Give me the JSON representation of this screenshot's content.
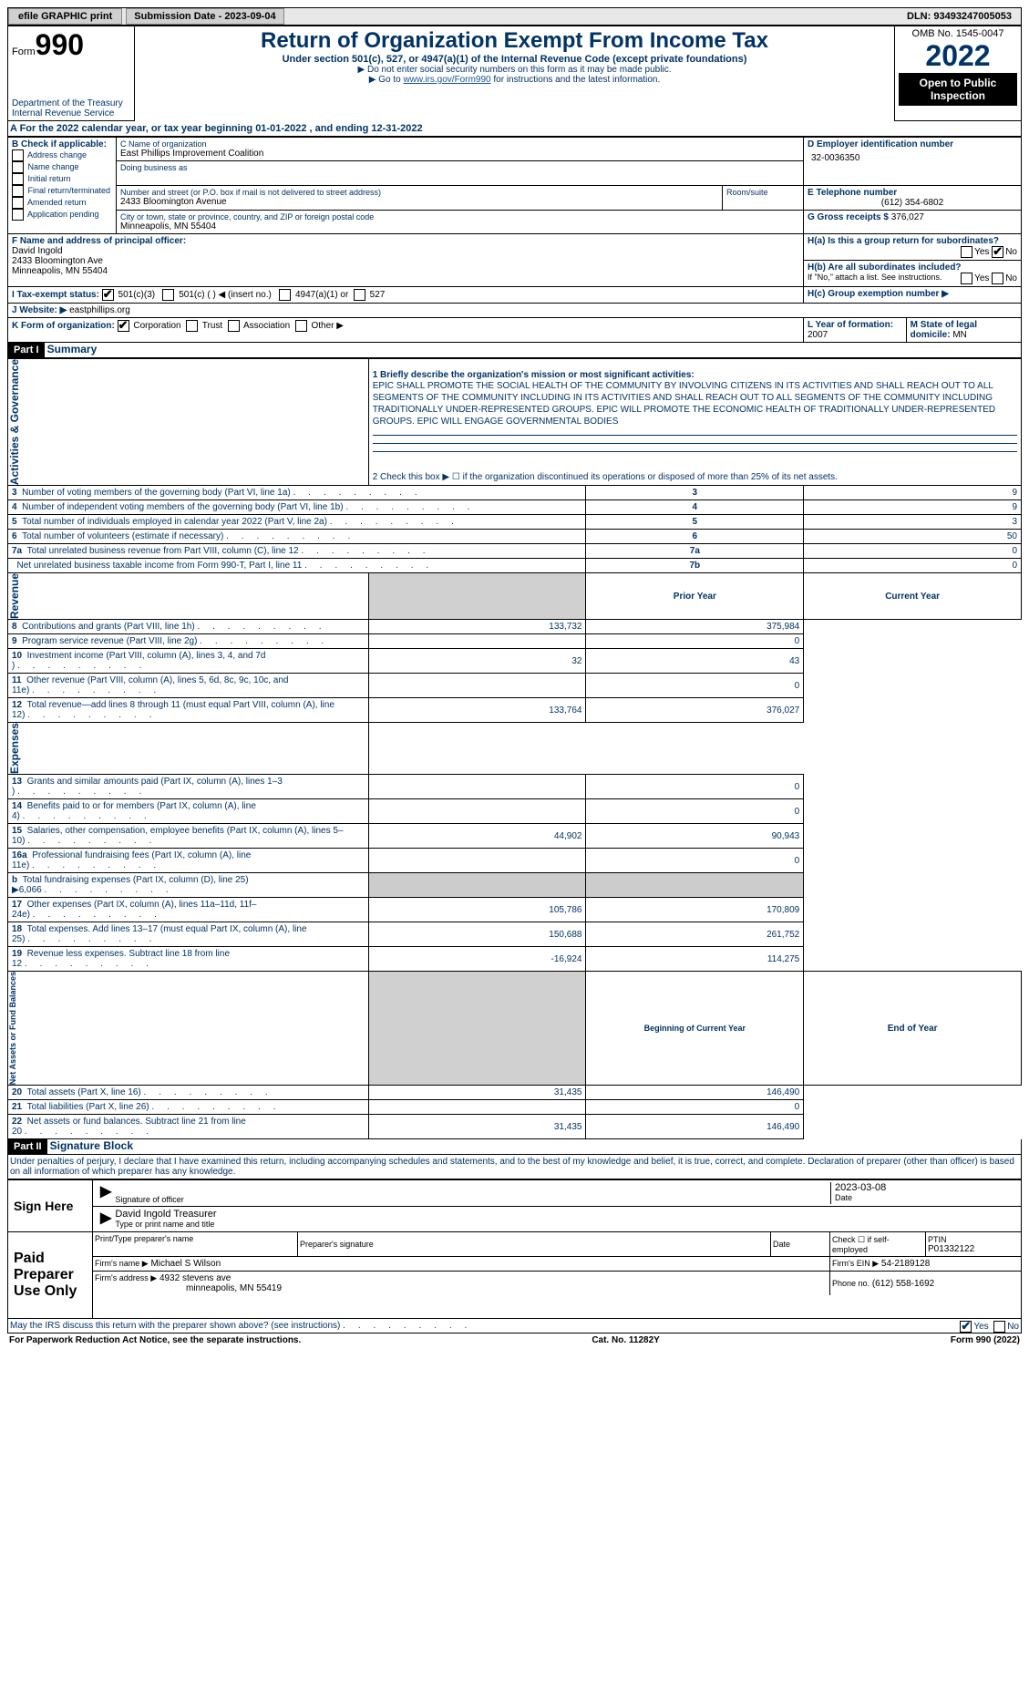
{
  "top": {
    "efile": "efile GRAPHIC print",
    "submission": "Submission Date - 2023-09-04",
    "dln": "DLN: 93493247005053"
  },
  "header": {
    "form_label": "Form",
    "form_num": "990",
    "dept": "Department of the Treasury\nInternal Revenue Service",
    "title": "Return of Organization Exempt From Income Tax",
    "subtitle": "Under section 501(c), 527, or 4947(a)(1) of the Internal Revenue Code (except private foundations)",
    "note1": "▶ Do not enter social security numbers on this form as it may be made public.",
    "note2": "▶ Go to www.irs.gov/Form990 for instructions and the latest information.",
    "omb": "OMB No. 1545-0047",
    "year": "2022",
    "open": "Open to Public Inspection"
  },
  "tax_year": "A For the 2022 calendar year, or tax year beginning 01-01-2022    , and ending 12-31-2022",
  "B": {
    "label": "B Check if applicable:",
    "items": [
      "Address change",
      "Name change",
      "Initial return",
      "Final return/terminated",
      "Amended return",
      "Application pending"
    ]
  },
  "C": {
    "name_label": "C Name of organization",
    "name": "East Phillips Improvement Coalition",
    "dba_label": "Doing business as",
    "street_label": "Number and street (or P.O. box if mail is not delivered to street address)",
    "room_label": "Room/suite",
    "street": "2433 Bloomington Avenue",
    "city_label": "City or town, state or province, country, and ZIP or foreign postal code",
    "city": "Minneapolis, MN  55404"
  },
  "D": {
    "label": "D Employer identification number",
    "value": "32-0036350"
  },
  "E": {
    "label": "E Telephone number",
    "value": "(612) 354-6802"
  },
  "G": {
    "label": "G Gross receipts $",
    "value": "376,027"
  },
  "F": {
    "label": "F Name and address of principal officer:",
    "name": "David Ingold",
    "addr1": "2433 Bloomington Ave",
    "addr2": "Minneapolis, MN  55404"
  },
  "H": {
    "a": "H(a)  Is this a group return for subordinates?",
    "b": "H(b)  Are all subordinates included?",
    "note": "If \"No,\" attach a list. See instructions.",
    "c": "H(c)  Group exemption number ▶"
  },
  "I": {
    "label": "I    Tax-exempt status:",
    "opt1": "501(c)(3)",
    "opt2": "501(c) (  ) ◀ (insert no.)",
    "opt3": "4947(a)(1) or",
    "opt4": "527"
  },
  "J": {
    "label": "J   Website: ▶",
    "value": "eastphillips.org"
  },
  "K": {
    "label": "K Form of organization:",
    "opts": [
      "Corporation",
      "Trust",
      "Association",
      "Other ▶"
    ]
  },
  "L": {
    "label": "L Year of formation:",
    "value": "2007"
  },
  "M": {
    "label": "M State of legal domicile:",
    "value": "MN"
  },
  "partI": {
    "header": "Part I",
    "title": "Summary",
    "q1": "1  Briefly describe the organization's mission or most significant activities:",
    "mission": "EPIC SHALL PROMOTE THE SOCIAL HEALTH OF THE COMMUNITY BY INVOLVING CITIZENS IN ITS ACTIVITIES AND SHALL REACH OUT TO ALL SEGMENTS OF THE COMMUNITY INCLUDING IN ITS ACTIVITIES AND SHALL REACH OUT TO ALL SEGMENTS OF THE COMMUNITY INCLUDING TRADITIONALLY UNDER-REPRESENTED GROUPS. EPIC WILL PROMOTE THE ECONOMIC HEALTH OF TRADITIONALLY UNDER-REPRESENTED GROUPS. EPIC WILL ENGAGE GOVERNMENTAL BODIES",
    "q2": "2    Check this box ▶ ☐  if the organization discontinued its operations or disposed of more than 25% of its net assets.",
    "rows_gov": [
      {
        "n": "3",
        "t": "Number of voting members of the governing body (Part VI, line 1a)",
        "c": "3",
        "v": "9"
      },
      {
        "n": "4",
        "t": "Number of independent voting members of the governing body (Part VI, line 1b)",
        "c": "4",
        "v": "9"
      },
      {
        "n": "5",
        "t": "Total number of individuals employed in calendar year 2022 (Part V, line 2a)",
        "c": "5",
        "v": "3"
      },
      {
        "n": "6",
        "t": "Total number of volunteers (estimate if necessary)",
        "c": "6",
        "v": "50"
      },
      {
        "n": "7a",
        "t": "Total unrelated business revenue from Part VIII, column (C), line 12",
        "c": "7a",
        "v": "0"
      },
      {
        "n": "",
        "t": "Net unrelated business taxable income from Form 990-T, Part I, line 11",
        "c": "7b",
        "v": "0"
      }
    ],
    "col_prior": "Prior Year",
    "col_curr": "Current Year",
    "rows_rev": [
      {
        "n": "8",
        "t": "Contributions and grants (Part VIII, line 1h)",
        "p": "133,732",
        "c": "375,984"
      },
      {
        "n": "9",
        "t": "Program service revenue (Part VIII, line 2g)",
        "p": "",
        "c": "0"
      },
      {
        "n": "10",
        "t": "Investment income (Part VIII, column (A), lines 3, 4, and 7d )",
        "p": "32",
        "c": "43"
      },
      {
        "n": "11",
        "t": "Other revenue (Part VIII, column (A), lines 5, 6d, 8c, 9c, 10c, and 11e)",
        "p": "",
        "c": "0"
      },
      {
        "n": "12",
        "t": "Total revenue—add lines 8 through 11 (must equal Part VIII, column (A), line 12)",
        "p": "133,764",
        "c": "376,027"
      }
    ],
    "rows_exp": [
      {
        "n": "13",
        "t": "Grants and similar amounts paid (Part IX, column (A), lines 1–3 )",
        "p": "",
        "c": "0"
      },
      {
        "n": "14",
        "t": "Benefits paid to or for members (Part IX, column (A), line 4)",
        "p": "",
        "c": "0"
      },
      {
        "n": "15",
        "t": "Salaries, other compensation, employee benefits (Part IX, column (A), lines 5–10)",
        "p": "44,902",
        "c": "90,943"
      },
      {
        "n": "16a",
        "t": "Professional fundraising fees (Part IX, column (A), line 11e)",
        "p": "",
        "c": "0"
      },
      {
        "n": "b",
        "t": "Total fundraising expenses (Part IX, column (D), line 25) ▶6,066",
        "p": "shaded",
        "c": "shaded"
      },
      {
        "n": "17",
        "t": "Other expenses (Part IX, column (A), lines 11a–11d, 11f–24e)",
        "p": "105,786",
        "c": "170,809"
      },
      {
        "n": "18",
        "t": "Total expenses. Add lines 13–17 (must equal Part IX, column (A), line 25)",
        "p": "150,688",
        "c": "261,752"
      },
      {
        "n": "19",
        "t": "Revenue less expenses. Subtract line 18 from line 12",
        "p": "-16,924",
        "c": "114,275"
      }
    ],
    "col_begin": "Beginning of Current Year",
    "col_end": "End of Year",
    "rows_net": [
      {
        "n": "20",
        "t": "Total assets (Part X, line 16)",
        "p": "31,435",
        "c": "146,490"
      },
      {
        "n": "21",
        "t": "Total liabilities (Part X, line 26)",
        "p": "",
        "c": "0"
      },
      {
        "n": "22",
        "t": "Net assets or fund balances. Subtract line 21 from line 20",
        "p": "31,435",
        "c": "146,490"
      }
    ],
    "side_gov": "Activities & Governance",
    "side_rev": "Revenue",
    "side_exp": "Expenses",
    "side_net": "Net Assets or Fund Balances"
  },
  "partII": {
    "header": "Part II",
    "title": "Signature Block",
    "penalty": "Under penalties of perjury, I declare that I have examined this return, including accompanying schedules and statements, and to the best of my knowledge and belief, it is true, correct, and complete. Declaration of preparer (other than officer) is based on all information of which preparer has any knowledge.",
    "sign_here": "Sign Here",
    "sig_officer": "Signature of officer",
    "date": "Date",
    "date_val": "2023-03-08",
    "name_title": "David Ingold  Treasurer",
    "type_name": "Type or print name and title",
    "paid": "Paid Preparer Use Only",
    "pp_name_label": "Print/Type preparer's name",
    "pp_sig_label": "Preparer's signature",
    "pp_date": "Date",
    "pp_check": "Check ☐ if self-employed",
    "ptin_label": "PTIN",
    "ptin": "P01332122",
    "firm_name_label": "Firm's name    ▶",
    "firm_name": "Michael S Wilson",
    "firm_ein_label": "Firm's EIN ▶",
    "firm_ein": "54-2189128",
    "firm_addr_label": "Firm's address ▶",
    "firm_addr1": "4932 stevens ave",
    "firm_addr2": "minneapolis, MN  55419",
    "phone_label": "Phone no.",
    "phone": "(612) 558-1692",
    "discuss": "May the IRS discuss this return with the preparer shown above? (see instructions)",
    "yes": "Yes",
    "no": "No"
  },
  "footer": {
    "paperwork": "For Paperwork Reduction Act Notice, see the separate instructions.",
    "cat": "Cat. No. 11282Y",
    "form": "Form 990 (2022)"
  }
}
